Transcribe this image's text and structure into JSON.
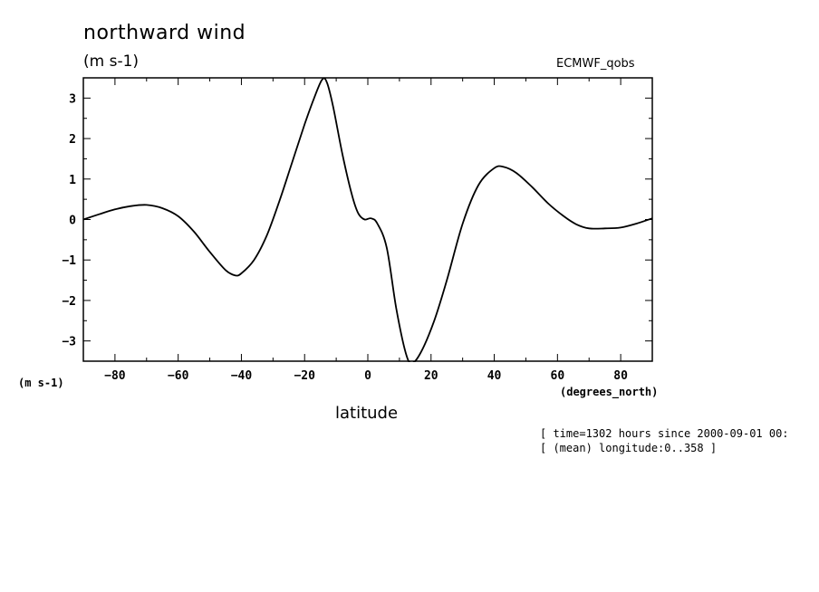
{
  "chart_data": {
    "type": "line",
    "title": "northward wind",
    "units": "(m s-1)",
    "source": "ECMWF_qobs",
    "ylabel": "(m s-1)",
    "xlabel": "latitude",
    "xunits": "(degrees_north)",
    "xlim": [
      -90,
      90
    ],
    "ylim": [
      -3.5,
      3.5
    ],
    "xticks": [
      -80,
      -60,
      -40,
      -20,
      0,
      20,
      40,
      60,
      80
    ],
    "yticks": [
      3,
      2,
      1,
      0,
      -1,
      -2,
      -3
    ],
    "xtick_labels": [
      "−80",
      "−60",
      "−40",
      "−20",
      "0",
      "20",
      "40",
      "60",
      "80"
    ],
    "ytick_labels": [
      "3",
      "2",
      "1",
      "0",
      "−1",
      "−2",
      "−3"
    ],
    "grid": false,
    "series": [
      {
        "points": [
          [
            -90,
            0.0
          ],
          [
            -85,
            0.13
          ],
          [
            -80,
            0.25
          ],
          [
            -75,
            0.33
          ],
          [
            -70,
            0.36
          ],
          [
            -65,
            0.28
          ],
          [
            -60,
            0.08
          ],
          [
            -55,
            -0.3
          ],
          [
            -50,
            -0.8
          ],
          [
            -45,
            -1.25
          ],
          [
            -42,
            -1.38
          ],
          [
            -40,
            -1.33
          ],
          [
            -36,
            -1.0
          ],
          [
            -32,
            -0.4
          ],
          [
            -28,
            0.45
          ],
          [
            -24,
            1.4
          ],
          [
            -20,
            2.35
          ],
          [
            -17,
            3.0
          ],
          [
            -14.5,
            3.45
          ],
          [
            -13,
            3.4
          ],
          [
            -11,
            2.8
          ],
          [
            -8,
            1.6
          ],
          [
            -5,
            0.6
          ],
          [
            -3,
            0.15
          ],
          [
            -1,
            0.0
          ],
          [
            1,
            0.03
          ],
          [
            3,
            -0.1
          ],
          [
            6,
            -0.7
          ],
          [
            9,
            -2.2
          ],
          [
            12,
            -3.3
          ],
          [
            14,
            -3.55
          ],
          [
            17,
            -3.25
          ],
          [
            21,
            -2.5
          ],
          [
            25,
            -1.5
          ],
          [
            30,
            -0.1
          ],
          [
            35,
            0.85
          ],
          [
            40,
            1.27
          ],
          [
            43,
            1.3
          ],
          [
            47,
            1.15
          ],
          [
            52,
            0.8
          ],
          [
            57,
            0.4
          ],
          [
            62,
            0.08
          ],
          [
            66,
            -0.12
          ],
          [
            70,
            -0.22
          ],
          [
            75,
            -0.22
          ],
          [
            80,
            -0.2
          ],
          [
            85,
            -0.1
          ],
          [
            90,
            0.03
          ]
        ]
      }
    ]
  },
  "annotations": {
    "time": "[ time=1302 hours since 2000-09-01 00:",
    "longitude": "[ (mean) longitude:0..358 ]"
  }
}
